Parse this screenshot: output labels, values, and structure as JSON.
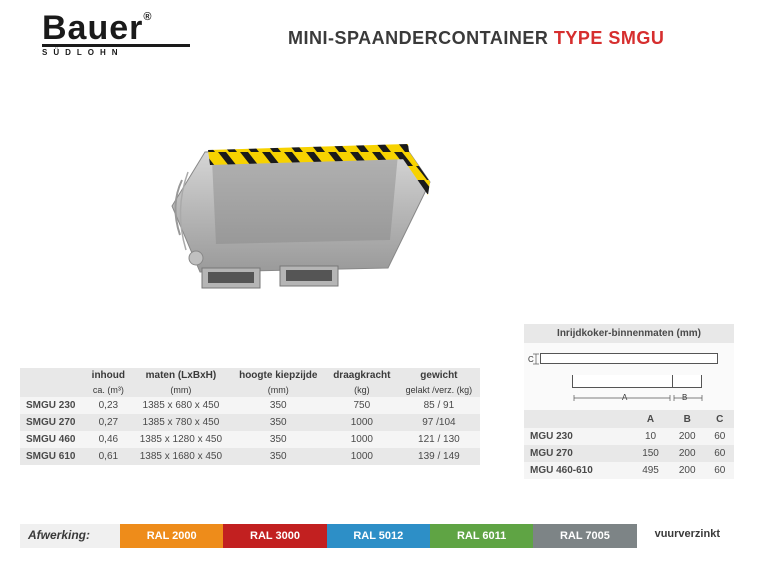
{
  "logo": {
    "name": "Bauer",
    "reg": "®",
    "sub": "SÜDLOHN"
  },
  "title": {
    "prefix": "MINI-SPAANDERCONTAINER ",
    "type": "TYPE SMGU"
  },
  "spec": {
    "headers": {
      "inhoud": "inhoud",
      "inhoud_sub": "ca. (m³)",
      "maten": "maten (LxBxH)",
      "maten_sub": "(mm)",
      "hoogte": "hoogte kiepzijde",
      "hoogte_sub": "(mm)",
      "draag": "draagkracht",
      "draag_sub": "(kg)",
      "gewicht": "gewicht",
      "gewicht_sub": "gelakt /verz. (kg)"
    },
    "rows": [
      {
        "model": "SMGU 230",
        "inhoud": "0,23",
        "maten": "1385 x  680 x  450",
        "hoogte": "350",
        "draag": "750",
        "gewicht": "85 / 91"
      },
      {
        "model": "SMGU 270",
        "inhoud": "0,27",
        "maten": "1385 x  780 x  450",
        "hoogte": "350",
        "draag": "1000",
        "gewicht": "97 /104"
      },
      {
        "model": "SMGU 460",
        "inhoud": "0,46",
        "maten": "1385 x 1280 x  450",
        "hoogte": "350",
        "draag": "1000",
        "gewicht": "121 / 130"
      },
      {
        "model": "SMGU 610",
        "inhoud": "0,61",
        "maten": "1385 x 1680 x  450",
        "hoogte": "350",
        "draag": "1000",
        "gewicht": "139 / 149"
      }
    ]
  },
  "inrij": {
    "title": "Inrijdkoker-binnenmaten (mm)",
    "headers": {
      "a": "A",
      "b": "B",
      "c": "C"
    },
    "diag": {
      "a": "A",
      "b": "B",
      "c": "C"
    },
    "rows": [
      {
        "model": "MGU 230",
        "a": "10",
        "b": "200",
        "c": "60"
      },
      {
        "model": "MGU 270",
        "a": "150",
        "b": "200",
        "c": "60"
      },
      {
        "model": "MGU 460-610",
        "a": "495",
        "b": "200",
        "c": "60"
      }
    ]
  },
  "finish": {
    "label": "Afwerking:",
    "swatches": [
      {
        "label": "RAL 2000",
        "color": "#ee8c1a"
      },
      {
        "label": "RAL 3000",
        "color": "#c22020"
      },
      {
        "label": "RAL 5012",
        "color": "#2d8fc7"
      },
      {
        "label": "RAL 6011",
        "color": "#5fa444"
      },
      {
        "label": "RAL 7005",
        "color": "#7d8486"
      }
    ],
    "last": "vuurverzinkt"
  }
}
